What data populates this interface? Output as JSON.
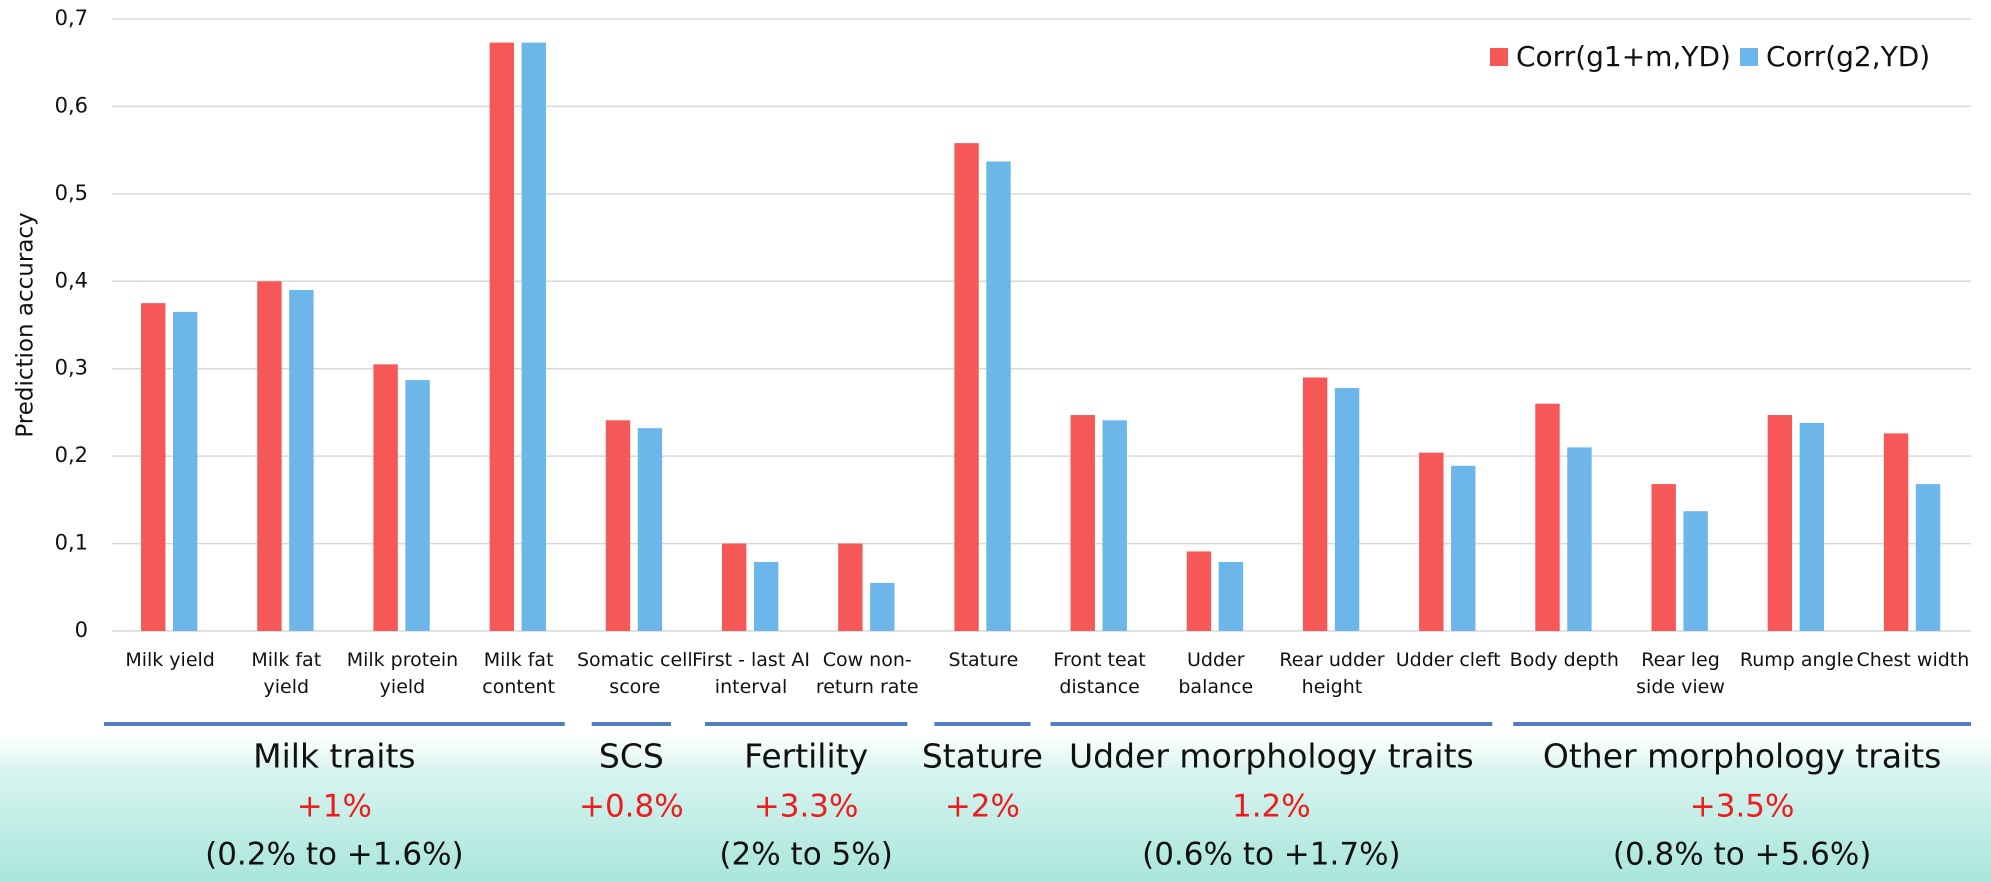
{
  "chart_data": {
    "type": "bar",
    "y_label": "Prediction accuracy",
    "categories": [
      "Milk yield",
      "Milk fat yield",
      "Milk protein yield",
      "Milk fat content",
      "Somatic cell score",
      "First - last AI interval",
      "Cow non-return rate",
      "Stature",
      "Front teat distance",
      "Udder balance",
      "Rear udder height",
      "Udder cleft",
      "Body depth",
      "Rear leg side view",
      "Rump angle",
      "Chest width"
    ],
    "series": [
      {
        "name": "Corr(g1+m,YD)",
        "color": "#f65757",
        "values": [
          0.375,
          0.4,
          0.305,
          0.673,
          0.241,
          0.1,
          0.1,
          0.558,
          0.247,
          0.091,
          0.29,
          0.204,
          0.26,
          0.168,
          0.247,
          0.226
        ]
      },
      {
        "name": "Corr(g2,YD)",
        "color": "#6cb6ea",
        "values": [
          0.365,
          0.39,
          0.287,
          0.673,
          0.232,
          0.079,
          0.055,
          0.537,
          0.241,
          0.079,
          0.278,
          0.189,
          0.21,
          0.137,
          0.238,
          0.168
        ]
      }
    ],
    "ylim": [
      0,
      0.7
    ],
    "yticks": [
      0,
      {
        "value": 0.1,
        "label": "0,1"
      },
      {
        "value": 0.2,
        "label": "0,2"
      },
      {
        "value": 0.3,
        "label": "0,3"
      },
      {
        "value": 0.4,
        "label": "0,4"
      },
      {
        "value": 0.5,
        "label": "0,5"
      },
      {
        "value": 0.6,
        "label": "0,6"
      },
      {
        "value": 0.7,
        "label": "0,7"
      }
    ],
    "grid": true,
    "legend": "top-right",
    "groups": [
      {
        "name": "Milk traits",
        "gain": "+1%",
        "range": "(0.2% to +1.6%)"
      },
      {
        "name": "SCS",
        "gain": "+0.8%"
      },
      {
        "name": "Fertility",
        "gain": "+3.3%",
        "range": "(2% to 5%)"
      },
      {
        "name": "Stature",
        "gain": "+2%"
      },
      {
        "name": "Udder morphology traits",
        "gain": "1.2%",
        "range": "(0.6% to +1.7%)"
      },
      {
        "name": "Other morphology traits",
        "gain": "+3.5%",
        "range": "(0.8% to +5.6%)"
      }
    ]
  }
}
